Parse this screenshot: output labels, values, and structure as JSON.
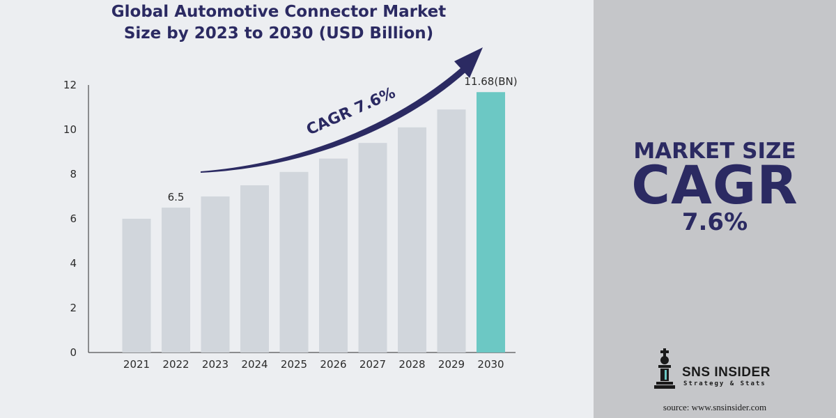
{
  "title_line1": "Global Automotive Connector Market",
  "title_line2": "Size by 2023 to 2030 (USD Billion)",
  "side": {
    "line1": "MARKET SIZE",
    "line2": "CAGR",
    "line3": "7.6%"
  },
  "logo": {
    "name": "SNS INSIDER",
    "tagline": "Strategy & Stats"
  },
  "source": "source: www.snsinsider.com",
  "colors": {
    "bar": "#d1d6dc",
    "highlight_bar": "#6cc8c4",
    "accent": "#2b2a62",
    "side_panel": "#c5c6c9"
  },
  "chart_data": {
    "type": "bar",
    "categories": [
      "2021",
      "2022",
      "2023",
      "2024",
      "2025",
      "2026",
      "2027",
      "2028",
      "2029",
      "2030"
    ],
    "values": [
      6.0,
      6.5,
      7.0,
      7.5,
      8.1,
      8.7,
      9.4,
      10.1,
      10.9,
      11.68
    ],
    "ylim": [
      0,
      12
    ],
    "yticks": [
      "0",
      "2",
      "4",
      "6",
      "8",
      "10",
      "12"
    ],
    "data_labels": [
      {
        "category": "2022",
        "text": "6.5"
      },
      {
        "category": "2030",
        "text": "11.68(BN)"
      }
    ],
    "highlight_category": "2030",
    "annotation": "CAGR 7.6%",
    "grid": false,
    "legend": "none"
  }
}
